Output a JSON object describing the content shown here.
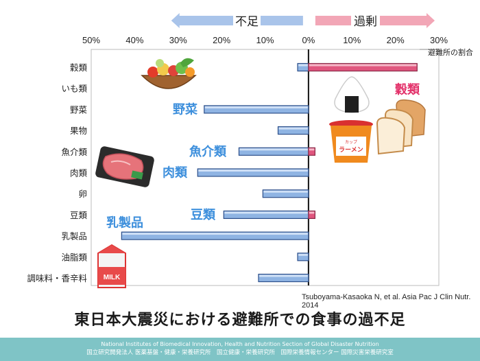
{
  "chart_data": {
    "type": "bar",
    "orientation": "horizontal",
    "categories": [
      "穀類",
      "いも類",
      "野菜",
      "果物",
      "魚介類",
      "肉類",
      "卵",
      "豆類",
      "乳製品",
      "油脂類",
      "調味料・香辛料"
    ],
    "values": [
      -2.5,
      0,
      -24,
      -7,
      -16,
      -25.5,
      -10.5,
      -19.5,
      -43,
      -2.5,
      -11.5
    ],
    "excess_values": [
      25,
      0,
      0,
      0,
      1.5,
      0,
      0,
      1.5,
      0,
      0,
      0
    ],
    "xlim": [
      -50,
      30
    ],
    "xticks": [
      -50,
      -40,
      -30,
      -20,
      -10,
      0,
      10,
      20,
      30
    ],
    "xtick_labels": [
      "50%",
      "40%",
      "30%",
      "20%",
      "10%",
      "0%",
      "10%",
      "20%",
      "30%"
    ],
    "xlabel": "避難所の割合",
    "left_arrow_label": "不足",
    "right_arrow_label": "過剰",
    "colors": {
      "deficit_bar": "#8fb4e3",
      "excess_bar": "#e0567e",
      "deficit_arrow": "#a9c4ea",
      "excess_arrow": "#f2a6b6",
      "annotation_blue": "#3d8fdc",
      "annotation_pink": "#e3316a"
    },
    "annotations": [
      {
        "text": "野菜",
        "category": "野菜",
        "color": "blue"
      },
      {
        "text": "魚介類",
        "category": "魚介類",
        "color": "blue"
      },
      {
        "text": "肉類",
        "category": "肉類",
        "color": "blue"
      },
      {
        "text": "豆類",
        "category": "豆類",
        "color": "blue"
      },
      {
        "text": "乳製品",
        "category": "乳製品",
        "color": "blue"
      },
      {
        "text": "穀類",
        "category": "いも類",
        "color": "pink"
      }
    ],
    "icons": [
      "vegetable-basket-icon",
      "meat-tray-icon",
      "milk-carton-icon",
      "rice-ball-icon",
      "cup-ramen-icon",
      "bread-icon"
    ],
    "cup_ramen_label_top": "カップ",
    "cup_ramen_label_main": "ラーメン"
  },
  "citation": "Tsuboyama-Kasaoka N, et al. Asia Pac J Clin Nutr. 2014",
  "title": "東日本大震災における避難所での食事の過不足",
  "footer": {
    "line1": "National Institutes of Biomedical Innovation, Health and Nutrition   Section of Global Disaster Nutrition",
    "line2": "国立研究開発法人 医薬基盤・健康・栄養研究所　国立健康・栄養研究所　国際栄養情報センター 国際災害栄養研究室"
  }
}
